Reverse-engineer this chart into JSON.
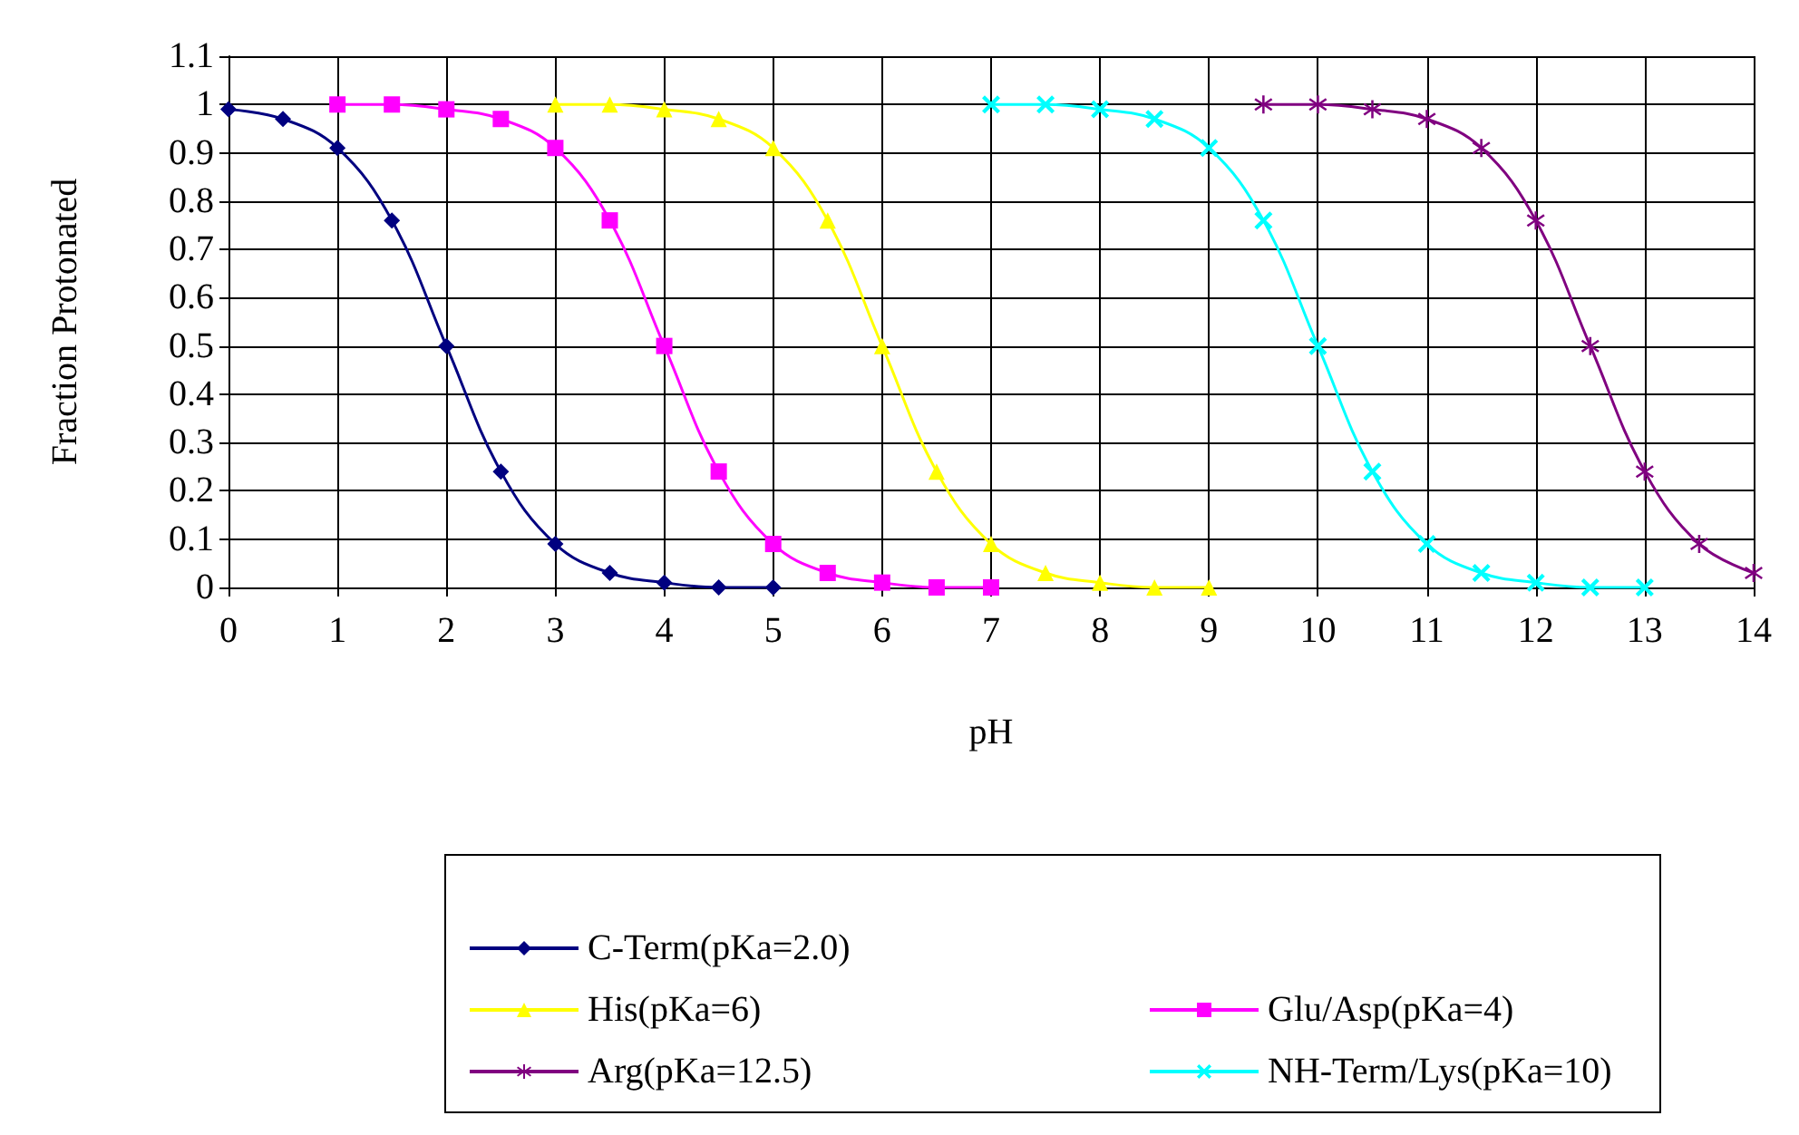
{
  "chart_data": {
    "type": "line",
    "xlabel": "pH",
    "ylabel": "Fraction Protonated",
    "xlim": [
      0,
      14
    ],
    "xticks": [
      0,
      1,
      2,
      3,
      4,
      5,
      6,
      7,
      8,
      9,
      10,
      11,
      12,
      13,
      14
    ],
    "ylim": [
      0,
      1.1
    ],
    "yticks": [
      0,
      0.1,
      0.2,
      0.3,
      0.4,
      0.5,
      0.6,
      0.7,
      0.8,
      0.9,
      1,
      1.1
    ],
    "grid": true,
    "legend": "bottom",
    "series": [
      {
        "name": "C-Term(pKa=2.0)",
        "color": "#000080",
        "marker": "diamond",
        "x": [
          0,
          0.5,
          1,
          1.5,
          2,
          2.5,
          3,
          3.5,
          4,
          4.5,
          5
        ],
        "values": [
          0.99,
          0.97,
          0.91,
          0.76,
          0.5,
          0.24,
          0.09,
          0.03,
          0.01,
          0,
          0
        ]
      },
      {
        "name": "Glu/Asp(pKa=4)",
        "color": "#ff00ff",
        "marker": "square",
        "x": [
          1,
          1.5,
          2,
          2.5,
          3,
          3.5,
          4,
          4.5,
          5,
          5.5,
          6,
          6.5,
          7
        ],
        "values": [
          1,
          1,
          0.99,
          0.97,
          0.91,
          0.76,
          0.5,
          0.24,
          0.09,
          0.03,
          0.01,
          0,
          0
        ]
      },
      {
        "name": "His(pKa=6)",
        "color": "#ffff00",
        "marker": "triangle",
        "x": [
          3,
          3.5,
          4,
          4.5,
          5,
          5.5,
          6,
          6.5,
          7,
          7.5,
          8,
          8.5,
          9
        ],
        "values": [
          1,
          1,
          0.99,
          0.97,
          0.91,
          0.76,
          0.5,
          0.24,
          0.09,
          0.03,
          0.01,
          0,
          0
        ]
      },
      {
        "name": "NH-Term/Lys(pKa=10)",
        "color": "#00ffff",
        "marker": "cross",
        "x": [
          7,
          7.5,
          8,
          8.5,
          9,
          9.5,
          10,
          10.5,
          11,
          11.5,
          12,
          12.5,
          13
        ],
        "values": [
          1,
          1,
          0.99,
          0.97,
          0.91,
          0.76,
          0.5,
          0.24,
          0.09,
          0.03,
          0.01,
          0,
          0
        ]
      },
      {
        "name": "Arg(pKa=12.5)",
        "color": "#800080",
        "marker": "star",
        "x": [
          9.5,
          10,
          10.5,
          11,
          11.5,
          12,
          12.5,
          13,
          13.5,
          14
        ],
        "values": [
          1,
          1,
          0.99,
          0.97,
          0.91,
          0.76,
          0.5,
          0.24,
          0.09,
          0.03
        ]
      }
    ]
  }
}
